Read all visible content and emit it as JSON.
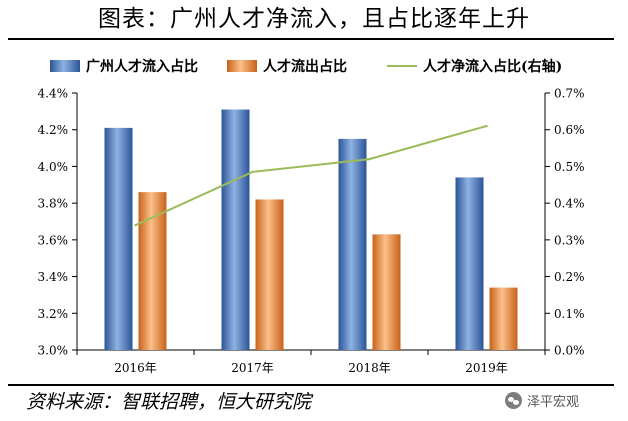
{
  "title": "图表：广州人才净流入，且占比逐年上升",
  "source": "资料来源：智联招聘，恒大研究院",
  "watermark": {
    "text": "泽平宏观",
    "icon": "wechat-icon"
  },
  "colors": {
    "bar1": "#4a7bc0",
    "bar1_light": "#8fb2e3",
    "bar1_dark": "#2b5597",
    "bar2": "#ee8a3c",
    "bar2_light": "#fbc08a",
    "bar2_dark": "#c8621a",
    "line": "#9bbb59",
    "axis": "#000000"
  },
  "chart_data": {
    "type": "bar",
    "categories": [
      "2016年",
      "2017年",
      "2018年",
      "2019年"
    ],
    "series": [
      {
        "name": "广州人才流入占比",
        "type": "bar",
        "axis": "left",
        "values": [
          4.21,
          4.31,
          4.15,
          3.94
        ]
      },
      {
        "name": "人才流出占比",
        "type": "bar",
        "axis": "left",
        "values": [
          3.86,
          3.82,
          3.63,
          3.34
        ]
      },
      {
        "name": "人才净流入占比(右轴)",
        "type": "line",
        "axis": "right",
        "values": [
          0.34,
          0.485,
          0.52,
          0.61
        ]
      }
    ],
    "y_left": {
      "min": 3.0,
      "max": 4.4,
      "step": 0.2,
      "tick_labels": [
        "3.0%",
        "3.2%",
        "3.4%",
        "3.6%",
        "3.8%",
        "4.0%",
        "4.2%",
        "4.4%"
      ]
    },
    "y_right": {
      "min": 0.0,
      "max": 0.7,
      "step": 0.1,
      "tick_labels": [
        "0.0%",
        "0.1%",
        "0.2%",
        "0.3%",
        "0.4%",
        "0.5%",
        "0.6%",
        "0.7%"
      ]
    },
    "grid": false,
    "legend_position": "top"
  }
}
